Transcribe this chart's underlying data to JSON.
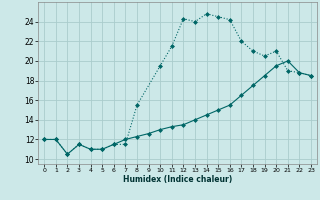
{
  "xlabel": "Humidex (Indice chaleur)",
  "xlim": [
    -0.5,
    23.5
  ],
  "ylim": [
    9.5,
    26
  ],
  "yticks": [
    10,
    12,
    14,
    16,
    18,
    20,
    22,
    24
  ],
  "xticks": [
    0,
    1,
    2,
    3,
    4,
    5,
    6,
    7,
    8,
    9,
    10,
    11,
    12,
    13,
    14,
    15,
    16,
    17,
    18,
    19,
    20,
    21,
    22,
    23
  ],
  "bg_color": "#cce8e8",
  "grid_color": "#aacccc",
  "line_color": "#006666",
  "curve1_x": [
    0,
    1,
    2,
    3,
    4,
    5,
    6,
    7,
    8,
    10,
    11,
    12,
    13,
    14,
    15,
    16,
    17,
    18,
    19,
    20,
    21,
    22,
    23
  ],
  "curve1_y": [
    12,
    12,
    10.5,
    11.5,
    11,
    11,
    11.5,
    11.5,
    15.5,
    19.5,
    21.5,
    24.3,
    24.0,
    24.8,
    24.5,
    24.2,
    22.0,
    21.0,
    20.5,
    21.0,
    19.0,
    18.8,
    18.5
  ],
  "curve2_x": [
    0,
    1,
    2,
    3,
    4,
    5,
    6,
    7,
    8,
    9,
    10,
    11,
    12,
    13,
    14,
    15,
    16,
    17,
    18,
    19,
    20,
    21,
    22,
    23
  ],
  "curve2_y": [
    12,
    12,
    10.5,
    11.5,
    11,
    11,
    11.5,
    12.0,
    12.3,
    12.6,
    13.0,
    13.3,
    13.5,
    14.0,
    14.5,
    15.0,
    15.5,
    16.5,
    17.5,
    18.5,
    19.5,
    20.0,
    18.8,
    18.5
  ]
}
